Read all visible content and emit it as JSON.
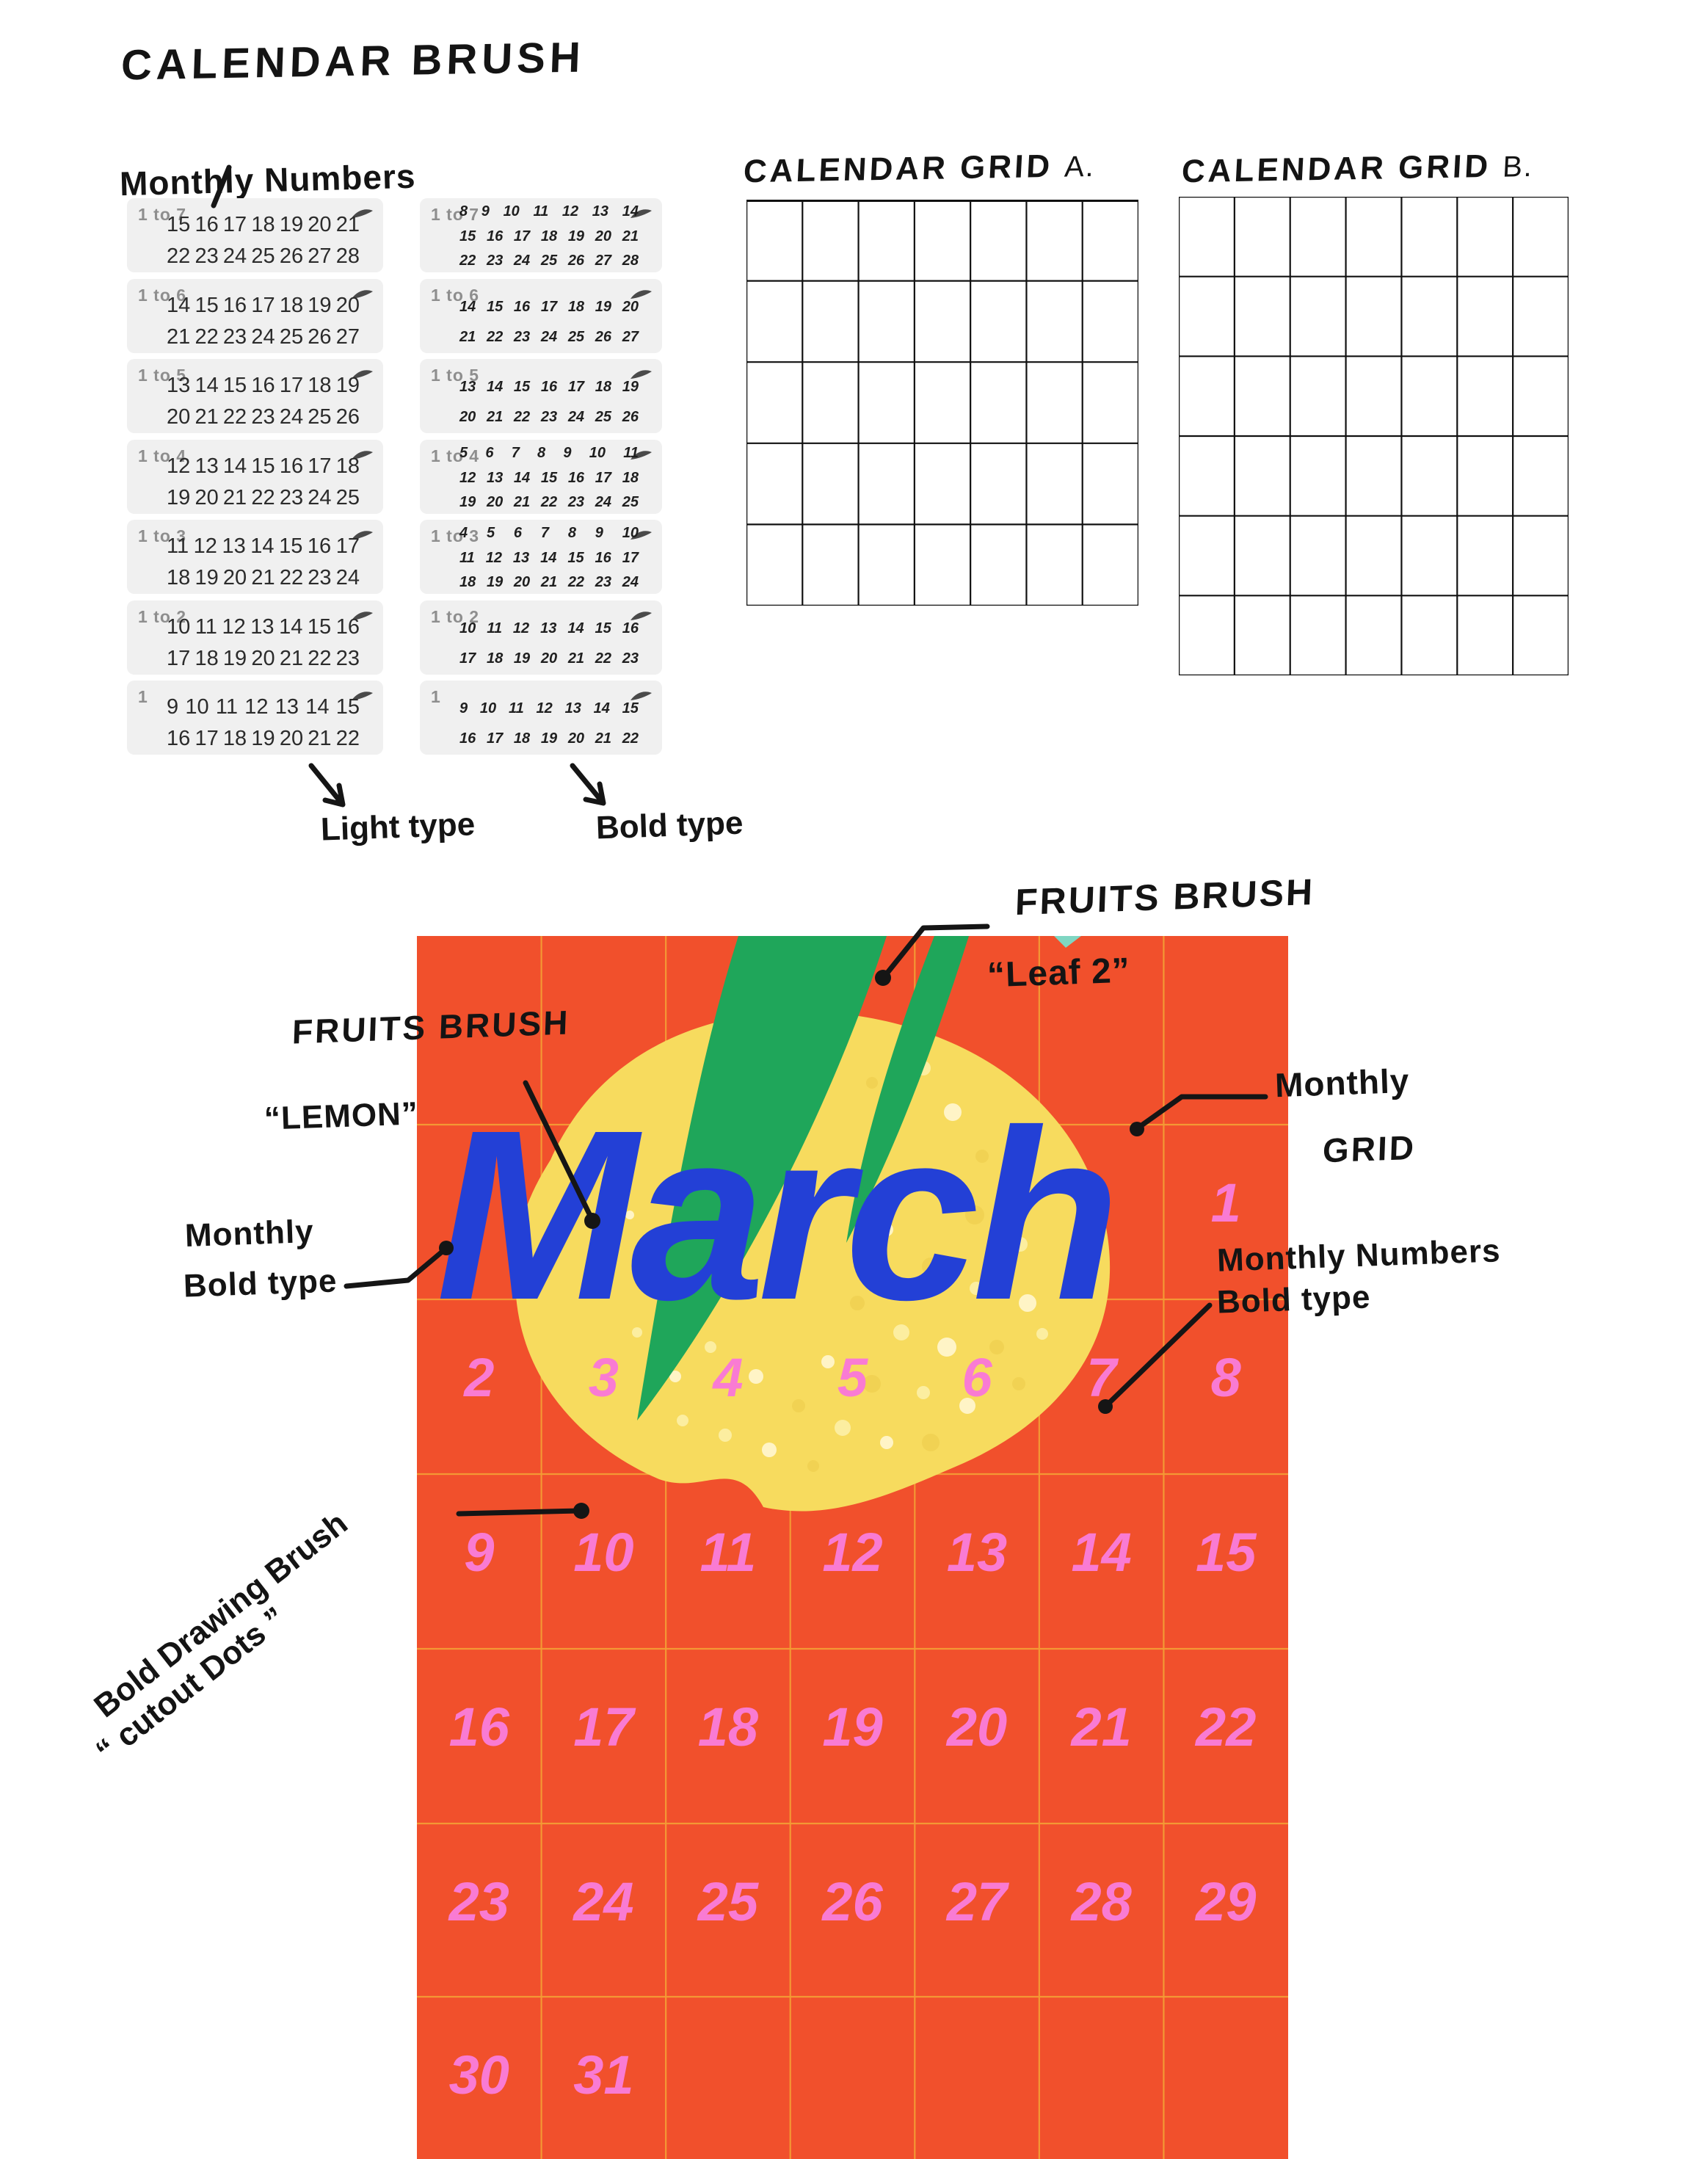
{
  "page": {
    "title": "CALENDAR BRUSH"
  },
  "monthly_numbers": {
    "heading": "Monthly Numbers",
    "light_caption": "Light type",
    "bold_caption": "Bold type",
    "light_panels": [
      {
        "label": "1 to 7",
        "rows": [
          [
            "15",
            "16",
            "17",
            "18",
            "19",
            "20",
            "21"
          ],
          [
            "22",
            "23",
            "24",
            "25",
            "26",
            "27",
            "28"
          ]
        ]
      },
      {
        "label": "1 to 6",
        "rows": [
          [
            "14",
            "15",
            "16",
            "17",
            "18",
            "19",
            "20"
          ],
          [
            "21",
            "22",
            "23",
            "24",
            "25",
            "26",
            "27"
          ]
        ]
      },
      {
        "label": "1 to 5",
        "rows": [
          [
            "13",
            "14",
            "15",
            "16",
            "17",
            "18",
            "19"
          ],
          [
            "20",
            "21",
            "22",
            "23",
            "24",
            "25",
            "26"
          ]
        ]
      },
      {
        "label": "1 to 4",
        "rows": [
          [
            "12",
            "13",
            "14",
            "15",
            "16",
            "17",
            "18"
          ],
          [
            "19",
            "20",
            "21",
            "22",
            "23",
            "24",
            "25"
          ]
        ]
      },
      {
        "label": "1 to 3",
        "rows": [
          [
            "11",
            "12",
            "13",
            "14",
            "15",
            "16",
            "17"
          ],
          [
            "18",
            "19",
            "20",
            "21",
            "22",
            "23",
            "24"
          ]
        ]
      },
      {
        "label": "1 to 2",
        "rows": [
          [
            "10",
            "11",
            "12",
            "13",
            "14",
            "15",
            "16"
          ],
          [
            "17",
            "18",
            "19",
            "20",
            "21",
            "22",
            "23"
          ]
        ]
      },
      {
        "label": "1",
        "rows": [
          [
            "9",
            "10",
            "11",
            "12",
            "13",
            "14",
            "15"
          ],
          [
            "16",
            "17",
            "18",
            "19",
            "20",
            "21",
            "22"
          ]
        ]
      }
    ],
    "bold_panels": [
      {
        "label": "1 to 7",
        "rows": [
          [
            "8",
            "9",
            "10",
            "11",
            "12",
            "13",
            "14"
          ],
          [
            "15",
            "16",
            "17",
            "18",
            "19",
            "20",
            "21"
          ],
          [
            "22",
            "23",
            "24",
            "25",
            "26",
            "27",
            "28"
          ]
        ]
      },
      {
        "label": "1 to 6",
        "rows": [
          [
            "14",
            "15",
            "16",
            "17",
            "18",
            "19",
            "20"
          ],
          [
            "21",
            "22",
            "23",
            "24",
            "25",
            "26",
            "27"
          ]
        ]
      },
      {
        "label": "1 to 5",
        "rows": [
          [
            "13",
            "14",
            "15",
            "16",
            "17",
            "18",
            "19"
          ],
          [
            "20",
            "21",
            "22",
            "23",
            "24",
            "25",
            "26"
          ]
        ]
      },
      {
        "label": "1 to 4",
        "rows": [
          [
            "5",
            "6",
            "7",
            "8",
            "9",
            "10",
            "11"
          ],
          [
            "12",
            "13",
            "14",
            "15",
            "16",
            "17",
            "18"
          ],
          [
            "19",
            "20",
            "21",
            "22",
            "23",
            "24",
            "25"
          ]
        ]
      },
      {
        "label": "1 to 3",
        "rows": [
          [
            "4",
            "5",
            "6",
            "7",
            "8",
            "9",
            "10"
          ],
          [
            "11",
            "12",
            "13",
            "14",
            "15",
            "16",
            "17"
          ],
          [
            "18",
            "19",
            "20",
            "21",
            "22",
            "23",
            "24"
          ]
        ]
      },
      {
        "label": "1 to 2",
        "rows": [
          [
            "10",
            "11",
            "12",
            "13",
            "14",
            "15",
            "16"
          ],
          [
            "17",
            "18",
            "19",
            "20",
            "21",
            "22",
            "23"
          ]
        ]
      },
      {
        "label": "1",
        "rows": [
          [
            "9",
            "10",
            "11",
            "12",
            "13",
            "14",
            "15"
          ],
          [
            "16",
            "17",
            "18",
            "19",
            "20",
            "21",
            "22"
          ]
        ]
      }
    ]
  },
  "calendar_grids": {
    "a_title": "CALENDAR GRID",
    "a_suffix": "A.",
    "b_title": "CALENDAR GRID",
    "b_suffix": "B.",
    "a": {
      "cols": 7,
      "rows": 5
    },
    "b": {
      "cols": 7,
      "rows": 6
    }
  },
  "poster": {
    "month_title": "March",
    "day_rows": [
      [
        "",
        "",
        "",
        "",
        "",
        "",
        "1"
      ],
      [
        "2",
        "3",
        "4",
        "5",
        "6",
        "7",
        "8"
      ],
      [
        "9",
        "10",
        "11",
        "12",
        "13",
        "14",
        "15"
      ],
      [
        "16",
        "17",
        "18",
        "19",
        "20",
        "21",
        "22"
      ],
      [
        "23",
        "24",
        "25",
        "26",
        "27",
        "28",
        "29"
      ],
      [
        "30",
        "31",
        "",
        "",
        "",
        "",
        ""
      ]
    ]
  },
  "annotations": {
    "leaf_line1": "FRUITS BRUSH",
    "leaf_line2": "“Leaf 2”",
    "lemon_line1": "FRUITS BRUSH",
    "lemon_line2": "“LEMON”",
    "monthly_grid_line1": "Monthly",
    "monthly_grid_line2": "GRID",
    "numbers_bold_line1": "Monthly Numbers",
    "numbers_bold_line2": "Bold type",
    "monthly_bold_line1": "Monthly",
    "monthly_bold_line2": "Bold type",
    "cutout_line1": "Bold Drawing Brush",
    "cutout_line2": "“ cutout Dots ”"
  },
  "colors": {
    "poster_orange": "#F1502C",
    "poster_grid_line": "#F49C35",
    "number_pink": "#F97BD3",
    "title_blue": "#2340D6",
    "leaf_green": "#1FA65A",
    "lemon_yellow": "#F7DB5E",
    "ink": "#141414",
    "panel_gray": "#F0F0F0"
  }
}
